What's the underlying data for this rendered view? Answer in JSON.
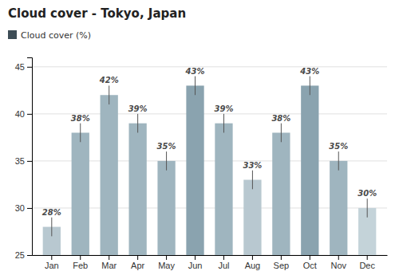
{
  "chart_data": {
    "type": "bar",
    "title": "Cloud cover - Tokyo, Japan",
    "categories": [
      "Jan",
      "Feb",
      "Mar",
      "Apr",
      "May",
      "Jun",
      "Jul",
      "Aug",
      "Sep",
      "Oct",
      "Nov",
      "Dec"
    ],
    "series": [
      {
        "name": "Cloud cover (%)",
        "color": "#3d4d56",
        "values": [
          28,
          38,
          42,
          39,
          35,
          43,
          39,
          33,
          38,
          43,
          35,
          30
        ],
        "value_labels": [
          "28%",
          "38%",
          "42%",
          "39%",
          "35%",
          "43%",
          "39%",
          "33%",
          "38%",
          "43%",
          "35%",
          "30%"
        ],
        "errors": [
          1.0,
          1.0,
          1.0,
          1.0,
          1.0,
          1.0,
          1.0,
          1.0,
          1.0,
          1.0,
          1.0,
          1.0
        ],
        "colors": [
          "#b8c8d0",
          "#9fb5bf",
          "#9fb5bf",
          "#9fb5bf",
          "#9fb5bf",
          "#8aa3af",
          "#9fb5bf",
          "#b8c8d0",
          "#9fb5bf",
          "#8aa3af",
          "#9fb5bf",
          "#c4d3d9"
        ]
      }
    ],
    "ylim": [
      25,
      46
    ],
    "yticks": [
      25,
      30,
      35,
      40,
      45
    ],
    "grid": true,
    "legend": "upper left",
    "data_labels": true
  }
}
